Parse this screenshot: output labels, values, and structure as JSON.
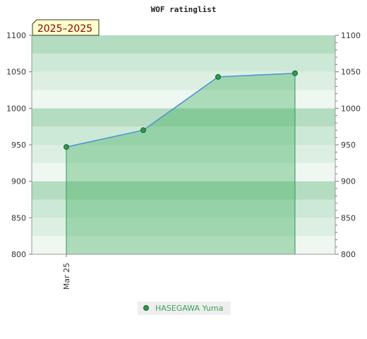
{
  "chart_data": {
    "type": "area",
    "title": "WOF ratinglist",
    "badge": "2025–2025",
    "x_tick_labels": [
      "Mar 25"
    ],
    "ylim": [
      800,
      1100
    ],
    "y_ticks": [
      800,
      850,
      900,
      950,
      1000,
      1050,
      1100
    ],
    "y_tick_labels": [
      "800",
      "850",
      "900",
      "950",
      "1000",
      "1050",
      "1100"
    ],
    "series": [
      {
        "name": "HASEGAWA Yuma",
        "values": [
          947,
          970,
          1043,
          1048
        ]
      }
    ],
    "grid": true,
    "legend_position": "bottom-center"
  },
  "colors": {
    "line": "#4a90d9",
    "area": "#3cae5c",
    "marker": "#2e9a4e",
    "band_dark": "#b3dcc0",
    "band_mid": "#cce8d6",
    "band_light": "#dcefe2",
    "band_lightest": "#eff7f1",
    "badge_bg": "#ffffcc",
    "legend_text": "#3ca35a"
  }
}
